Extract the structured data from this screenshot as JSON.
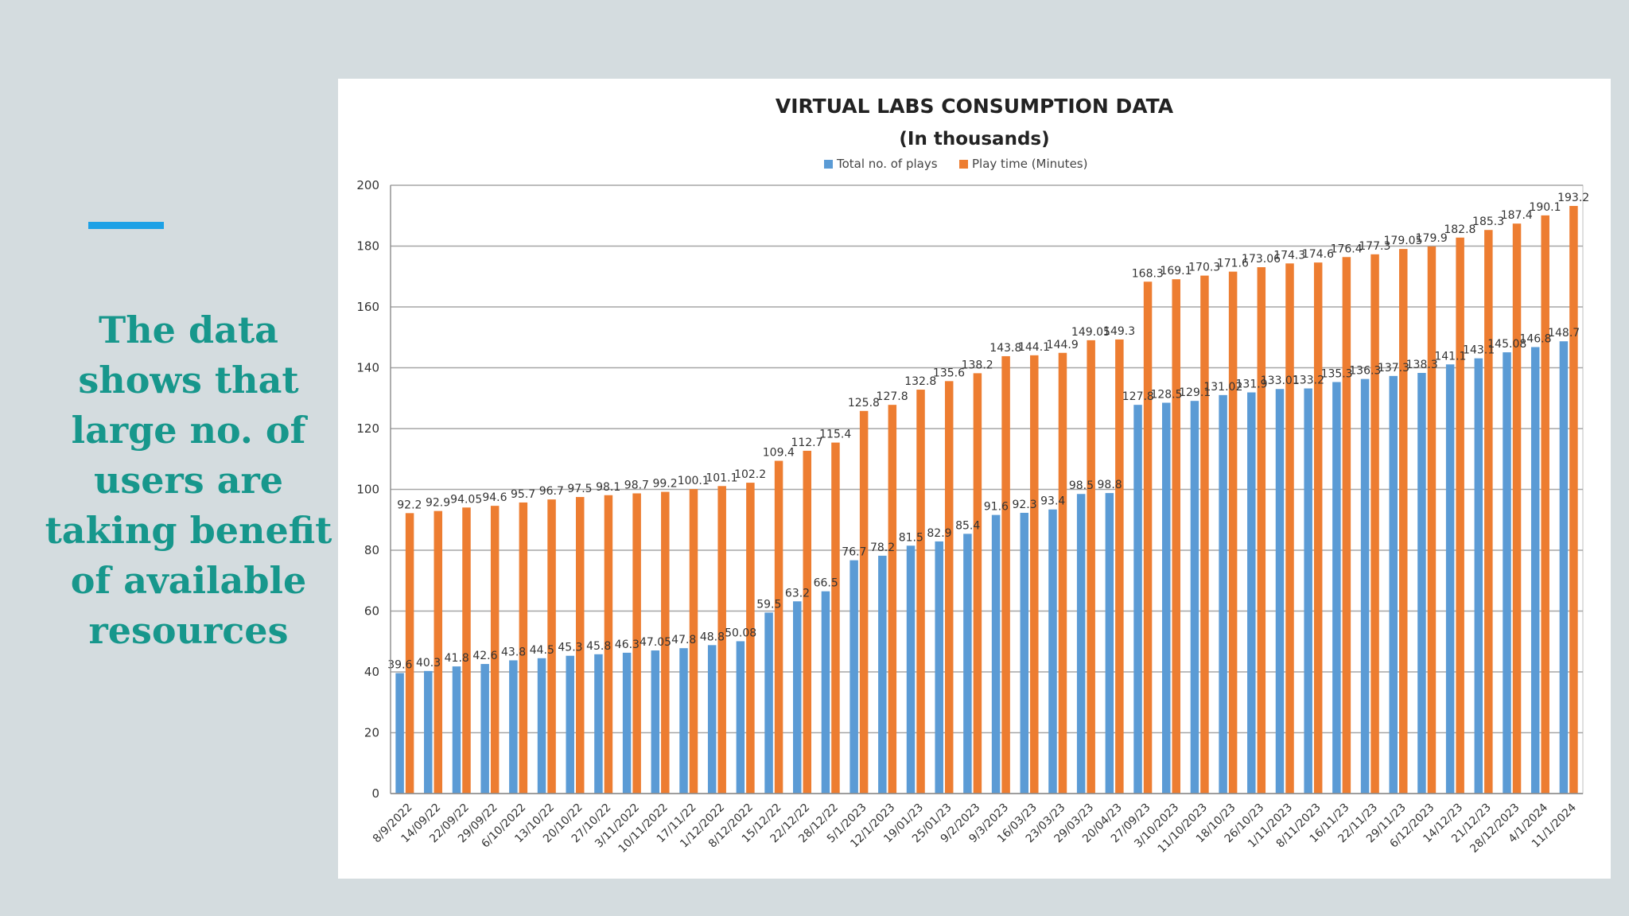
{
  "slide": {
    "body_text": "The data\nshows that\nlarge no. of\nusers are\ntaking benefit\nof available\nresources"
  },
  "colors": {
    "background": "#d4dcdf",
    "accent": "#1da1e6",
    "text": "#17978c",
    "series_plays": "#5b9bd5",
    "series_play_time": "#ed7d31"
  },
  "chart_data": {
    "type": "bar",
    "title": "VIRTUAL LABS CONSUMPTION DATA",
    "subtitle": "(In thousands)",
    "xlabel": "",
    "ylabel": "",
    "ylim": [
      0,
      200
    ],
    "yticks": [
      0,
      20,
      40,
      60,
      80,
      100,
      120,
      140,
      160,
      180,
      200
    ],
    "grid": true,
    "legend_position": "top",
    "categories": [
      "8/9/2022",
      "14/09/22",
      "22/09/22",
      "29/09/22",
      "6/10/2022",
      "13/10/22",
      "20/10/22",
      "27/10/22",
      "3/11/2022",
      "10/11/2022",
      "17/11/22",
      "1/12/2022",
      "8/12/2022",
      "15/12/22",
      "22/12/22",
      "28/12/22",
      "5/1/2023",
      "12/1/2023",
      "19/01/23",
      "25/01/23",
      "9/2/2023",
      "9/3/2023",
      "16/03/23",
      "23/03/23",
      "29/03/23",
      "20/04/23",
      "27/09/23",
      "3/10/2023",
      "11/10/2023",
      "18/10/23",
      "26/10/23",
      "1/11/2023",
      "8/11/2023",
      "16/11/23",
      "22/11/23",
      "29/11/23",
      "6/12/2023",
      "14/12/23",
      "21/12/23",
      "28/12/2023",
      "4/1/2024",
      "11/1/2024"
    ],
    "series": [
      {
        "name": "Total no. of plays",
        "color": "#5b9bd5",
        "values": [
          39.6,
          40.3,
          41.8,
          42.6,
          43.8,
          44.5,
          45.3,
          45.8,
          46.3,
          47.05,
          47.8,
          48.8,
          50.08,
          59.5,
          63.2,
          66.5,
          76.7,
          78.2,
          81.5,
          82.9,
          85.4,
          91.6,
          92.3,
          93.4,
          98.5,
          98.8,
          127.8,
          128.5,
          129.1,
          131.02,
          131.9,
          133.01,
          133.2,
          135.3,
          136.3,
          137.3,
          138.3,
          141.1,
          143.1,
          145.08,
          146.8,
          148.7
        ],
        "labels": [
          "39.6",
          "40.3",
          "41.8",
          "42.6",
          "43.8",
          "44.5",
          "45.3",
          "45.8",
          "46.3",
          "47.05",
          "47.8",
          "48.8",
          "50.08",
          "59.5",
          "63.2",
          "66.5",
          "76.7",
          "78.2",
          "81.5",
          "82.9",
          "85.4",
          "91.6",
          "92.3",
          "93.4",
          "98.5",
          "98.8",
          "127.8",
          "128.5",
          "129.1",
          "131.02",
          "131.9",
          "133.01",
          "133.2",
          "135.3",
          "136.3",
          "137.3",
          "138.3",
          "141.1",
          "143.1",
          "145.08",
          "146.8",
          "148.7"
        ]
      },
      {
        "name": "Play time (Minutes)",
        "color": "#ed7d31",
        "values": [
          92.2,
          92.9,
          94.05,
          94.6,
          95.7,
          96.7,
          97.5,
          98.1,
          98.7,
          99.2,
          100.1,
          101.1,
          102.2,
          109.4,
          112.7,
          115.4,
          125.8,
          127.8,
          132.8,
          135.6,
          138.2,
          143.8,
          144.1,
          144.9,
          149.05,
          149.3,
          168.3,
          169.1,
          170.3,
          171.6,
          173.06,
          174.3,
          174.6,
          176.4,
          177.3,
          179.05,
          179.9,
          182.8,
          185.3,
          187.4,
          190.1,
          193.2
        ],
        "labels": [
          "92.2",
          "92.9",
          "94.05",
          "94.6",
          "95.7",
          "96.7",
          "97.5",
          "98.1",
          "98.7",
          "99.2",
          "100.1",
          "101.1",
          "102.2",
          "109.4",
          "112.7",
          "115.4",
          "125.8",
          "127.8",
          "132.8",
          "135.6",
          "138.2",
          "143.8",
          "144.1",
          "144.9",
          "149.05",
          "149.3",
          "168.3",
          "169.1",
          "170.3",
          "171.6",
          "173.06",
          "174.3",
          "174.6",
          "176.4",
          "177.3",
          "179.05",
          "179.9",
          "182.8",
          "185.3",
          "187.4",
          "190.1",
          "193.2"
        ]
      }
    ]
  }
}
